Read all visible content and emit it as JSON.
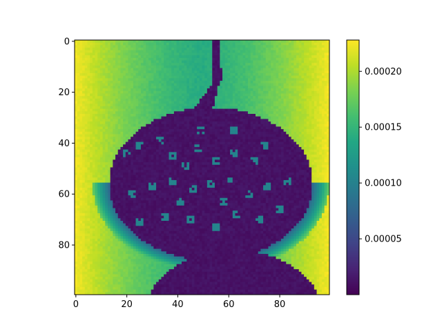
{
  "chart_data": {
    "type": "heatmap",
    "title": "",
    "xlabel": "",
    "ylabel": "",
    "grid": false,
    "x_range": [
      -0.5,
      99.5
    ],
    "y_range": [
      -0.5,
      99.5
    ],
    "y_inverted": true,
    "x_ticks": [
      0,
      20,
      40,
      60,
      80
    ],
    "y_ticks": [
      0,
      20,
      40,
      60,
      80
    ],
    "colormap": "viridis",
    "colorbar": {
      "range": [
        0.0,
        0.000228
      ],
      "ticks": [
        5e-05,
        0.0001,
        0.00015,
        0.0002
      ],
      "tick_labels": [
        "0.00005",
        "0.00010",
        "0.00015",
        "0.00020"
      ]
    },
    "image_description": "100x100 grayscale-like intensity image: bright yellow/green background, a dark purple rounded fruit-like shape with a stem rising to the top near column 55, scattered small teal specks inside, and a second dark rounded shape cut off at the bottom"
  }
}
